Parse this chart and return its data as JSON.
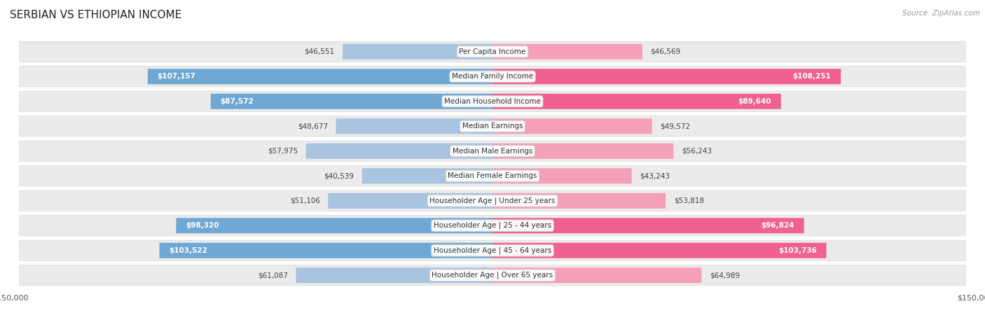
{
  "title": "SERBIAN VS ETHIOPIAN INCOME",
  "source": "Source: ZipAtlas.com",
  "categories": [
    "Per Capita Income",
    "Median Family Income",
    "Median Household Income",
    "Median Earnings",
    "Median Male Earnings",
    "Median Female Earnings",
    "Householder Age | Under 25 years",
    "Householder Age | 25 - 44 years",
    "Householder Age | 45 - 64 years",
    "Householder Age | Over 65 years"
  ],
  "serbian_values": [
    46551,
    107157,
    87572,
    48677,
    57975,
    40539,
    51106,
    98320,
    103522,
    61087
  ],
  "ethiopian_values": [
    46569,
    108251,
    89640,
    49572,
    56243,
    43243,
    53818,
    96824,
    103736,
    64989
  ],
  "serbian_labels": [
    "$46,551",
    "$107,157",
    "$87,572",
    "$48,677",
    "$57,975",
    "$40,539",
    "$51,106",
    "$98,320",
    "$103,522",
    "$61,087"
  ],
  "ethiopian_labels": [
    "$46,569",
    "$108,251",
    "$89,640",
    "$49,572",
    "$56,243",
    "$43,243",
    "$53,818",
    "$96,824",
    "$103,736",
    "$64,989"
  ],
  "serbian_color_normal": "#a8c4e0",
  "serbian_color_highlight": "#6fa8d4",
  "ethiopian_color_normal": "#f4a0b8",
  "ethiopian_color_highlight": "#f06090",
  "highlight_threshold": 80000,
  "x_max": 150000,
  "background_color": "#ffffff",
  "row_bg_color": "#ebebeb",
  "bar_height": 0.62,
  "title_fontsize": 11,
  "label_fontsize": 7.5,
  "category_fontsize": 7.5,
  "tick_fontsize": 8,
  "source_fontsize": 7.5
}
